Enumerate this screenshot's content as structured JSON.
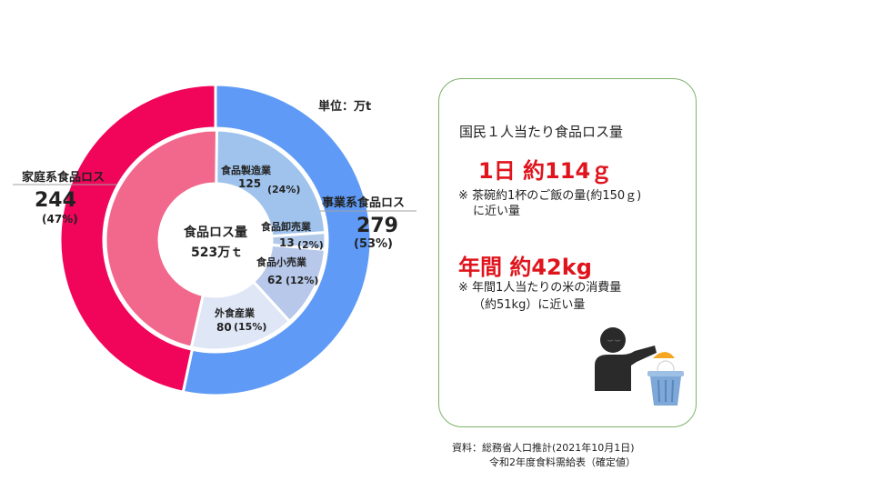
{
  "chart_data": {
    "type": "pie",
    "subtype": "nested-donut",
    "unit": "単位：万t",
    "center": {
      "title": "食品ロス量",
      "value": "523万ｔ",
      "total": 523
    },
    "outer": [
      {
        "name": "事業系食品ロス",
        "value": 279,
        "value_label": "279",
        "percent_label": "(53%)",
        "color": "#5f9af6"
      },
      {
        "name": "家庭系食品ロス",
        "value": 244,
        "value_label": "244",
        "percent_label": "(47%)",
        "color": "#f0055a"
      }
    ],
    "inner": [
      {
        "name": "食品製造業",
        "value": 125,
        "value_label": "125",
        "percent_label": "(24%)",
        "color": "#9fc3ec"
      },
      {
        "name": "食品卸売業",
        "value": 13,
        "value_label": "13",
        "percent_label": "(2%)",
        "color": "#b3c9ea"
      },
      {
        "name": "食品小売業",
        "value": 62,
        "value_label": "62",
        "percent_label": "(12%)",
        "color": "#b7c8ea"
      },
      {
        "name": "外食産業",
        "value": 80,
        "value_label": "80",
        "percent_label": "(15%)",
        "color": "#dfe6f5"
      },
      {
        "name": "家庭系",
        "value": 244,
        "color": "#f2678c"
      }
    ]
  },
  "panel": {
    "title": "国民１人当たり食品ロス量",
    "daily": {
      "headline": "1日 約114ｇ",
      "note_line1": "※ 茶碗約1杯のご飯の量(約150ｇ)",
      "note_line2": "に近い量"
    },
    "annual": {
      "headline": "年間 約42kg",
      "note_line1": "※ 年間1人当たりの米の消費量",
      "note_line2": "（約51kg）に近い量"
    }
  },
  "source": {
    "line1": "資料：総務省人口推計(2021年10月1日)",
    "line2": "令和2年度食料需給表（確定値）"
  },
  "colors": {
    "accent_red": "#e0141c",
    "panel_border": "#7cb26a",
    "bin_blue": "#7ea8d8",
    "person": "#2a2a2a",
    "food_orange": "#f5a623"
  }
}
